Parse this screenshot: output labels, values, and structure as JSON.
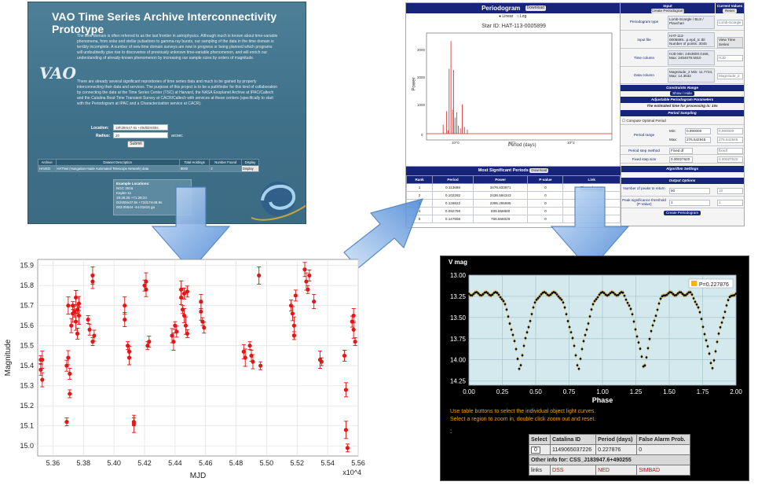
{
  "vao": {
    "title": "VAO Time Series Archive Interconnectivity Prototype",
    "logo_text": "VAO",
    "intro_paragraph_1": "The time domain is often referred to as the last frontier in astrophysics. Although much is known about time-variable phenomena, from solar and stellar pulsations to gamma-ray bursts, our sampling of the data in the time domain is terribly incomplete. A number of new time domain surveys are now in progress or being planned which programs will undoubtedly give rise to discoveries of previously unknown time-variable phenomenon, and will enrich our understanding of already-known phenomenon by increasing our sample sizes by orders of magnitude.",
    "intro_paragraph_2": "There are already several significant repositories of time series data and much to be gained by properly interconnecting their data and services. The purpose of this project is to be a pathfinder for this kind of collaboration by connecting the data at the Time Series Center (TSC) at Harvard, the NASA Exoplanet Archive at IPAC/Caltech and the Catalina Real-Time Transient Survey at CACR/Caltech with services at these centers (specifically to start with the Periodogram at IPAC and a Characterization service at CACR).",
    "location_label": "Location:",
    "location_value": "18h39m47.6s +49d02m55s",
    "radius_label": "Radius:",
    "radius_value": "20",
    "radius_unit": "arcsec",
    "submit_label": "Submit",
    "table": {
      "headers": [
        "Archive",
        "Dataset Description",
        "Total Holdings",
        "Number Found",
        "Display"
      ],
      "rows": [
        [
          "HAVED",
          "HATNet (Hungarian-made Automated Telescope Network) data",
          "8000",
          "2",
          "Display"
        ]
      ]
    },
    "locations_box": {
      "title": "Example Locations:",
      "lines": [
        "NGC 3516",
        "Kepler-11",
        "19:28:25 +71:28:24",
        "01h00m47.5s +72d17m48.9s",
        "003.05544 -44.01815 ga"
      ]
    }
  },
  "periodogram": {
    "title": "Periodogram",
    "download_label": "Download",
    "linear_label": "Linear",
    "log_label": "Log",
    "star_id": "Star ID: HAT-113-0005899",
    "xlabel": "Period (days)",
    "ylabel": "Power",
    "y_ticks": [
      "3000",
      "2000",
      "1000",
      "0"
    ],
    "x_ticks": [
      "10^0",
      "10^1",
      "10^2"
    ]
  },
  "params": {
    "col_input": "Input",
    "col_input_btn": "Create Periodogram",
    "col_current": "Current Values",
    "col_current_btn": "Reset",
    "rows": [
      {
        "label": "Periodogram type",
        "content": "Lomb-Scargle / BLS / Plavchan",
        "value": "Lomb-Scargle"
      },
      {
        "label": "Input file",
        "content": "HAT-113-0005899...p.epd_tc.tbl Number of points: 3045",
        "value": "View Time Series"
      },
      {
        "label": "Time column",
        "content": "HJD  Min: 2453600.0166, Max: 2454079.5910",
        "value": "HJD"
      },
      {
        "label": "Data column",
        "content": "Magnitude_2  Min: 11.7724, Max: 14.3632",
        "value": "Magnitude_2"
      }
    ],
    "constraints_title": "Constraints Range",
    "constraints_link": "Show / Hide",
    "adjustable_title": "Adjustable Periodogram Parameters",
    "estimated_time": "The estimated time for processing is: 10s",
    "sampling_title": "Period Sampling",
    "compute_label": "Compute Optimal Period",
    "period_range_label": "Period range",
    "period_min_label": "Min:",
    "period_min": "0.990000",
    "period_max_label": "Max:",
    "period_max": "276.542945",
    "step_method_label": "Period step method",
    "step_method": "Fixed df",
    "step_method_value": "fixedf",
    "fixed_step_label": "Fixed step size",
    "fixed_step": "0.00027620",
    "algo_title": "Algorithm Settings",
    "output_title": "Output Options",
    "peaks_label": "Number of peaks to return",
    "peaks_value": "50",
    "peaks_current": "10",
    "threshold_label": "Peak significance threshold (P-Value)",
    "threshold_value": "1",
    "threshold_current": "1",
    "create_btn": "Create Periodogram"
  },
  "significant": {
    "title": "Most Significant Periods",
    "download_label": "Download",
    "headers": [
      "Rank",
      "Period",
      "Power",
      "P-value",
      "Link"
    ],
    "rows": [
      [
        "1",
        "0.113698",
        "3476.833971",
        "0",
        "Phased curve"
      ],
      [
        "2",
        "0.102282",
        "2436.594343",
        "0",
        ""
      ],
      [
        "3",
        "0.128822",
        "2395.255595",
        "0",
        ""
      ],
      [
        "4",
        "0.092756",
        "839.658680",
        "0",
        ""
      ],
      [
        "5",
        "0.147556",
        "796.666029",
        "0",
        ""
      ]
    ]
  },
  "lightcurve_chart": {
    "chart_data": {
      "type": "scatter",
      "xlabel": "MJD",
      "ylabel": "Magnitude",
      "x_exponent_label": "x10^4",
      "xlim": [
        5.35,
        5.56
      ],
      "ylim": [
        14.95,
        15.93
      ],
      "x_ticks": [
        "5.36",
        "5.38",
        "5.40",
        "5.42",
        "5.44",
        "5.46",
        "5.48",
        "5.50",
        "5.52",
        "5.54",
        "5.56"
      ],
      "y_ticks": [
        "15.9",
        "15.8",
        "15.7",
        "15.6",
        "15.5",
        "15.4",
        "15.3",
        "15.2",
        "15.1",
        "15.0"
      ],
      "grid": true,
      "points": [
        [
          5.352,
          15.43
        ],
        [
          5.352,
          15.38
        ],
        [
          5.353,
          15.33
        ],
        [
          5.353,
          15.43
        ],
        [
          5.369,
          15.12
        ],
        [
          5.369,
          15.4
        ],
        [
          5.37,
          15.44
        ],
        [
          5.37,
          15.7
        ],
        [
          5.371,
          15.26
        ],
        [
          5.371,
          15.36
        ],
        [
          5.372,
          15.6
        ],
        [
          5.373,
          15.66
        ],
        [
          5.373,
          15.7
        ],
        [
          5.374,
          15.67
        ],
        [
          5.375,
          15.74
        ],
        [
          5.375,
          15.62
        ],
        [
          5.376,
          15.68
        ],
        [
          5.376,
          15.56
        ],
        [
          5.377,
          15.71
        ],
        [
          5.377,
          15.65
        ],
        [
          5.383,
          15.63
        ],
        [
          5.384,
          15.58
        ],
        [
          5.386,
          15.82
        ],
        [
          5.386,
          15.85
        ],
        [
          5.386,
          15.52
        ],
        [
          5.387,
          15.55
        ],
        [
          5.407,
          15.63
        ],
        [
          5.407,
          15.7
        ],
        [
          5.409,
          15.5
        ],
        [
          5.41,
          15.47
        ],
        [
          5.41,
          15.44
        ],
        [
          5.413,
          15.11
        ],
        [
          5.413,
          15.12
        ],
        [
          5.42,
          15.8
        ],
        [
          5.421,
          15.78
        ],
        [
          5.421,
          15.82
        ],
        [
          5.422,
          15.5
        ],
        [
          5.423,
          15.52
        ],
        [
          5.438,
          15.55
        ],
        [
          5.439,
          15.52
        ],
        [
          5.44,
          15.6
        ],
        [
          5.441,
          15.57
        ],
        [
          5.444,
          15.74
        ],
        [
          5.444,
          15.78
        ],
        [
          5.445,
          15.68
        ],
        [
          5.446,
          15.76
        ],
        [
          5.446,
          15.65
        ],
        [
          5.447,
          15.6
        ],
        [
          5.448,
          15.56
        ],
        [
          5.448,
          15.77
        ],
        [
          5.457,
          15.72
        ],
        [
          5.457,
          15.67
        ],
        [
          5.458,
          15.62
        ],
        [
          5.459,
          15.59
        ],
        [
          5.485,
          15.47
        ],
        [
          5.486,
          15.44
        ],
        [
          5.489,
          15.5
        ],
        [
          5.49,
          15.45
        ],
        [
          5.491,
          15.42
        ],
        [
          5.495,
          15.85
        ],
        [
          5.496,
          15.4
        ],
        [
          5.516,
          15.7
        ],
        [
          5.517,
          15.66
        ],
        [
          5.518,
          15.6
        ],
        [
          5.518,
          15.55
        ],
        [
          5.519,
          15.75
        ],
        [
          5.525,
          15.88
        ],
        [
          5.526,
          15.82
        ],
        [
          5.527,
          15.78
        ],
        [
          5.528,
          15.85
        ],
        [
          5.531,
          15.72
        ],
        [
          5.535,
          15.43
        ],
        [
          5.536,
          15.42
        ],
        [
          5.551,
          15.45
        ],
        [
          5.552,
          15.28
        ],
        [
          5.552,
          15.08
        ],
        [
          5.553,
          14.99
        ],
        [
          5.556,
          15.62
        ],
        [
          5.557,
          15.65
        ],
        [
          5.557,
          15.58
        ],
        [
          5.558,
          15.52
        ]
      ]
    }
  },
  "phase_chart": {
    "vmag_label": "V mag",
    "legend": "P=0.227876",
    "chart_data": {
      "type": "scatter",
      "xlabel": "Phase",
      "ylabel": "V mag",
      "xlim": [
        0,
        2.0
      ],
      "ylim": [
        14.3,
        13.0
      ],
      "x_ticks": [
        "0.00",
        "0.25",
        "0.50",
        "0.75",
        "1.00",
        "1.25",
        "1.50",
        "1.75",
        "2.00"
      ],
      "y_ticks": [
        "13.00",
        "13.25",
        "13.50",
        "13.75",
        "14.00",
        "14.25"
      ],
      "grid": true,
      "minima_phases": [
        0.38,
        0.82,
        1.31,
        1.82
      ],
      "maximum_magnitude": 13.22,
      "minimum_magnitude": 14.12
    },
    "note_line_1": "Use table buttons to select the individual object light curves.",
    "note_line_2": "Select a region to zoom in, double click zoom out and reset.",
    "colon": ":",
    "table": {
      "header": [
        "Select",
        "Catalina ID",
        "Period (days)",
        "False Alarm Prob."
      ],
      "row": [
        "0",
        "1149065037226",
        "0.227876",
        "0"
      ],
      "other_info": "Other info for: CSS_J183947.6+490255",
      "links_label": "links",
      "links": [
        "DSS",
        "NED",
        "SIMBAD"
      ]
    }
  }
}
